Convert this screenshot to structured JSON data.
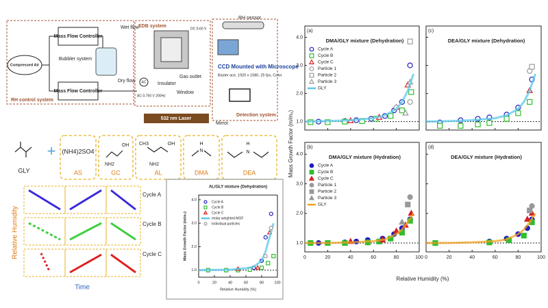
{
  "diagram": {
    "apparatus": {
      "compressed_air": "Compressed Air",
      "mfc_top": "Mass Flow Controller",
      "mfc_bottom": "Mass Flow Controller",
      "wet_flow": "Wet flow",
      "bubbler": "Bubbler system",
      "dry_flow": "Dry flow",
      "rh_control": "RH control system",
      "edb": "EDB system",
      "ac": "AC",
      "dc": "DC 0-60 V",
      "ac_range": "AC 0-750 V 200Hz",
      "insulator": "Insulator",
      "window": "Window",
      "gas_outlet": "Gas outlet",
      "rh_sensor": "RH sensor",
      "ccd": "CCD Mounted with Microscope",
      "camera": "Basler ace, 1920 x 1080, 25 fps, Color",
      "detection": "Detection system",
      "laser": "532 nm Laser",
      "mirror": "Mirror"
    },
    "compounds": {
      "gly": "GLY",
      "as": "AS",
      "as_formula": "(NH4)2SO4",
      "gc": "GC",
      "al": "AL",
      "dma": "DMA",
      "dea": "DEA",
      "oh": "OH",
      "nh2": "NH2",
      "ch3": "CH3",
      "h": "H",
      "n": "N"
    },
    "cycles": {
      "y_label": "Relative Humidity",
      "x_label": "Time",
      "cycle_a": "Cycle A",
      "cycle_b": "Cycle B",
      "cycle_c": "Cycle C"
    }
  },
  "shared_axes": {
    "x_label": "Relative Humidity (%)",
    "y_label": "Mass Growth Factor (m/m₀)"
  },
  "chart_data": [
    {
      "type": "scatter",
      "panel_label": "(a)",
      "title": "DMA/GLY mixture (Dehydration)",
      "legend": "upper left",
      "xlim": [
        0,
        100
      ],
      "xticks": [
        0,
        20,
        40,
        60,
        80,
        100
      ],
      "show_xtick_labels": false,
      "ylim": [
        0.7,
        4.4
      ],
      "yticks": [
        {
          "value": 1,
          "label": "1.0"
        },
        {
          "value": 2,
          "label": "2.0"
        },
        {
          "value": 3,
          "label": "3.0"
        },
        {
          "value": 4,
          "label": "4.0"
        }
      ],
      "show_ytick_labels": true,
      "reference_line": 1,
      "series": [
        {
          "name": "Cycle A",
          "color": "#1f1fbf",
          "marker": "circle",
          "filled": false,
          "x": [
            12,
            35,
            45,
            58,
            70,
            78,
            85,
            92
          ],
          "values": [
            1.0,
            1.02,
            1.05,
            1.1,
            1.2,
            1.4,
            1.7,
            3.0
          ]
        },
        {
          "name": "Cycle B",
          "color": "#2ebd2e",
          "marker": "square",
          "filled": false,
          "x": [
            5,
            20,
            35,
            50,
            62,
            75,
            85,
            93
          ],
          "values": [
            0.98,
            0.98,
            1.0,
            1.02,
            1.1,
            1.2,
            1.4,
            2.05
          ]
        },
        {
          "name": "Cycle C",
          "color": "#d62020",
          "marker": "triangle",
          "filled": false,
          "x": [
            40,
            65,
            80,
            90
          ],
          "values": [
            1.03,
            1.15,
            1.5,
            2.3
          ]
        },
        {
          "name": "Particle 1",
          "color": "#999999",
          "marker": "circle",
          "filled": false,
          "x": [
            80,
            92
          ],
          "values": [
            1.5,
            1.7
          ]
        },
        {
          "name": "Particle 2",
          "color": "#999999",
          "marker": "square",
          "filled": false,
          "x": [
            92
          ],
          "values": [
            3.85
          ]
        },
        {
          "name": "Particle 3",
          "color": "#999999",
          "marker": "triangle",
          "filled": false,
          "x": [
            88,
            92
          ],
          "values": [
            1.3,
            2.4
          ]
        },
        {
          "name": "GLY",
          "color": "#5bc8e8",
          "marker": "line",
          "x": [
            0,
            20,
            40,
            60,
            70,
            80,
            85,
            90,
            95
          ],
          "values": [
            1.0,
            1.02,
            1.05,
            1.12,
            1.22,
            1.45,
            1.7,
            2.1,
            2.7
          ]
        }
      ]
    },
    {
      "type": "scatter",
      "panel_label": "(b)",
      "title": "DMA/GLY mixture (Hydration)",
      "legend": "upper left",
      "xlim": [
        0,
        100
      ],
      "xticks": [
        0,
        20,
        40,
        60,
        80,
        100
      ],
      "show_xtick_labels": true,
      "ylim": [
        0.7,
        4.4
      ],
      "yticks": [
        {
          "value": 1,
          "label": "1.0"
        },
        {
          "value": 2,
          "label": "2.0"
        },
        {
          "value": 3,
          "label": "3.0"
        },
        {
          "value": 4,
          "label": "4.0"
        }
      ],
      "show_ytick_labels": true,
      "reference_line": 1,
      "series": [
        {
          "name": "Cycle A",
          "color": "#1f1fbf",
          "marker": "circle",
          "filled": true,
          "x": [
            12,
            35,
            45,
            55,
            68,
            78,
            85,
            92
          ],
          "values": [
            1.0,
            1.02,
            1.05,
            1.1,
            1.15,
            1.3,
            1.5,
            1.8
          ]
        },
        {
          "name": "Cycle B",
          "color": "#2ebd2e",
          "marker": "square",
          "filled": true,
          "x": [
            5,
            20,
            35,
            55,
            65,
            75,
            85,
            92
          ],
          "values": [
            1.0,
            1.0,
            1.0,
            1.02,
            1.05,
            1.15,
            1.35,
            1.75
          ]
        },
        {
          "name": "Cycle C",
          "color": "#d62020",
          "marker": "triangle",
          "filled": true,
          "x": [
            40,
            68,
            80,
            88,
            93
          ],
          "values": [
            1.05,
            1.1,
            1.4,
            1.6,
            2.0
          ]
        },
        {
          "name": "Particle 1",
          "color": "#999999",
          "marker": "circle",
          "filled": true,
          "x": [
            92
          ],
          "values": [
            2.55
          ]
        },
        {
          "name": "Particle 2",
          "color": "#999999",
          "marker": "square",
          "filled": true,
          "x": [
            90
          ],
          "values": [
            2.3
          ]
        },
        {
          "name": "Particle 3",
          "color": "#999999",
          "marker": "triangle",
          "filled": true,
          "x": [
            85
          ],
          "values": [
            1.7
          ]
        },
        {
          "name": "GLY",
          "color": "#f0a020",
          "marker": "line",
          "x": [
            0,
            20,
            40,
            60,
            70,
            80,
            85,
            90,
            95
          ],
          "values": [
            1.0,
            1.0,
            1.02,
            1.06,
            1.12,
            1.3,
            1.45,
            1.7,
            2.0
          ]
        }
      ]
    },
    {
      "type": "scatter",
      "panel_label": "(c)",
      "title": "DEA/GLY mixture (Dehydration)",
      "xlim": [
        0,
        100
      ],
      "xticks": [
        0,
        20,
        40,
        60,
        80,
        100
      ],
      "show_xtick_labels": false,
      "ylim": [
        0.7,
        4.4
      ],
      "yticks": [
        1,
        2,
        3,
        4
      ],
      "show_ytick_labels": false,
      "reference_line": 1,
      "series": [
        {
          "color": "#1f1fbf",
          "marker": "circle",
          "filled": false,
          "x": [
            12,
            30,
            45,
            55,
            70,
            80,
            92
          ],
          "values": [
            0.97,
            1.05,
            1.1,
            1.15,
            1.25,
            1.5,
            2.5
          ]
        },
        {
          "color": "#2ebd2e",
          "marker": "square",
          "filled": false,
          "x": [
            12,
            30,
            45,
            55,
            70,
            80,
            90
          ],
          "values": [
            0.85,
            0.85,
            0.9,
            0.95,
            1.1,
            1.3,
            1.7
          ]
        },
        {
          "color": "#d62020",
          "marker": "triangle",
          "filled": false,
          "x": [
            90
          ],
          "values": [
            2.1
          ]
        },
        {
          "color": "#999999",
          "marker": "circle",
          "filled": false,
          "x": [
            90
          ],
          "values": [
            2.8
          ]
        },
        {
          "color": "#999999",
          "marker": "square",
          "filled": false,
          "x": [
            92
          ],
          "values": [
            2.95
          ]
        },
        {
          "color": "#5bc8e8",
          "marker": "line",
          "x": [
            0,
            20,
            40,
            60,
            70,
            80,
            85,
            90,
            95
          ],
          "values": [
            1.0,
            1.02,
            1.05,
            1.12,
            1.22,
            1.45,
            1.7,
            2.1,
            2.7
          ]
        }
      ]
    },
    {
      "type": "scatter",
      "panel_label": "(d)",
      "title": "DEA/GLY mixture (Hydration)",
      "xlim": [
        0,
        100
      ],
      "xticks": [
        0,
        20,
        40,
        60,
        80,
        100
      ],
      "show_xtick_labels": true,
      "ylim": [
        0.7,
        4.4
      ],
      "yticks": [
        1,
        2,
        3,
        4
      ],
      "show_ytick_labels": false,
      "reference_line": 1,
      "series": [
        {
          "color": "#1f1fbf",
          "marker": "circle",
          "filled": true,
          "x": [
            8,
            55,
            70,
            80,
            88,
            92
          ],
          "values": [
            1.0,
            1.05,
            1.15,
            1.3,
            1.5,
            1.8
          ]
        },
        {
          "color": "#2ebd2e",
          "marker": "square",
          "filled": true,
          "x": [
            8,
            55,
            72,
            85,
            92
          ],
          "values": [
            1.0,
            1.02,
            1.1,
            1.25,
            1.7
          ]
        },
        {
          "color": "#d62020",
          "marker": "triangle",
          "filled": true,
          "x": [
            88,
            92
          ],
          "values": [
            1.8,
            2.0
          ]
        },
        {
          "color": "#999999",
          "marker": "circle",
          "filled": true,
          "x": [
            92
          ],
          "values": [
            2.25
          ]
        },
        {
          "color": "#999999",
          "marker": "square",
          "filled": true,
          "x": [
            90
          ],
          "values": [
            2.1
          ]
        },
        {
          "color": "#f0a020",
          "marker": "line",
          "x": [
            0,
            20,
            40,
            60,
            70,
            80,
            85,
            90,
            95
          ],
          "values": [
            1.0,
            1.0,
            1.02,
            1.06,
            1.12,
            1.3,
            1.45,
            1.7,
            2.0
          ]
        }
      ]
    },
    {
      "type": "scatter",
      "title": "AL/GLY mixture (Dehydration)",
      "legend": "upper left",
      "x_label": "Relative Humidity (%)",
      "y_label": "Mass Growth Factor (m/m₀)",
      "xlim": [
        0,
        100
      ],
      "xticks": [
        0,
        20,
        40,
        60,
        80,
        100
      ],
      "show_xtick_labels": true,
      "ylim": [
        0.7,
        4.2
      ],
      "yticks": [
        {
          "value": 1,
          "label": "1.0"
        },
        {
          "value": 2,
          "label": "2.0"
        },
        {
          "value": 3,
          "label": "3.0"
        },
        {
          "value": 4,
          "label": "4.0"
        }
      ],
      "show_ytick_labels": true,
      "reference_line": 1,
      "series": [
        {
          "name": "Cycle A",
          "color": "#1f1fbf",
          "marker": "circle",
          "filled": false,
          "x": [
            12,
            35,
            50,
            70,
            80,
            85,
            92
          ],
          "values": [
            1.0,
            1.0,
            1.02,
            1.1,
            1.4,
            2.4,
            3.4
          ]
        },
        {
          "name": "Cycle B",
          "color": "#2ebd2e",
          "marker": "square",
          "filled": false,
          "x": [
            12,
            35,
            50,
            65,
            80,
            88,
            95
          ],
          "values": [
            1.0,
            1.0,
            1.0,
            1.02,
            1.1,
            1.3,
            1.6
          ]
        },
        {
          "name": "Cycle C",
          "color": "#d62020",
          "marker": "triangle",
          "filled": false,
          "x": [
            50,
            75,
            90
          ],
          "values": [
            1.05,
            1.1,
            2.6
          ]
        },
        {
          "name": "molar weighted MGF",
          "color": "#5bc8e8",
          "marker": "line",
          "x": [
            0,
            40,
            60,
            70,
            80,
            85,
            90,
            95
          ],
          "values": [
            1.0,
            1.02,
            1.08,
            1.15,
            1.4,
            1.8,
            2.4,
            3.0
          ]
        },
        {
          "name": "Individual particles",
          "color": "#999999",
          "marker": "circle",
          "filled": false,
          "x": [
            85,
            92
          ],
          "values": [
            1.6,
            2.8
          ]
        }
      ]
    }
  ]
}
